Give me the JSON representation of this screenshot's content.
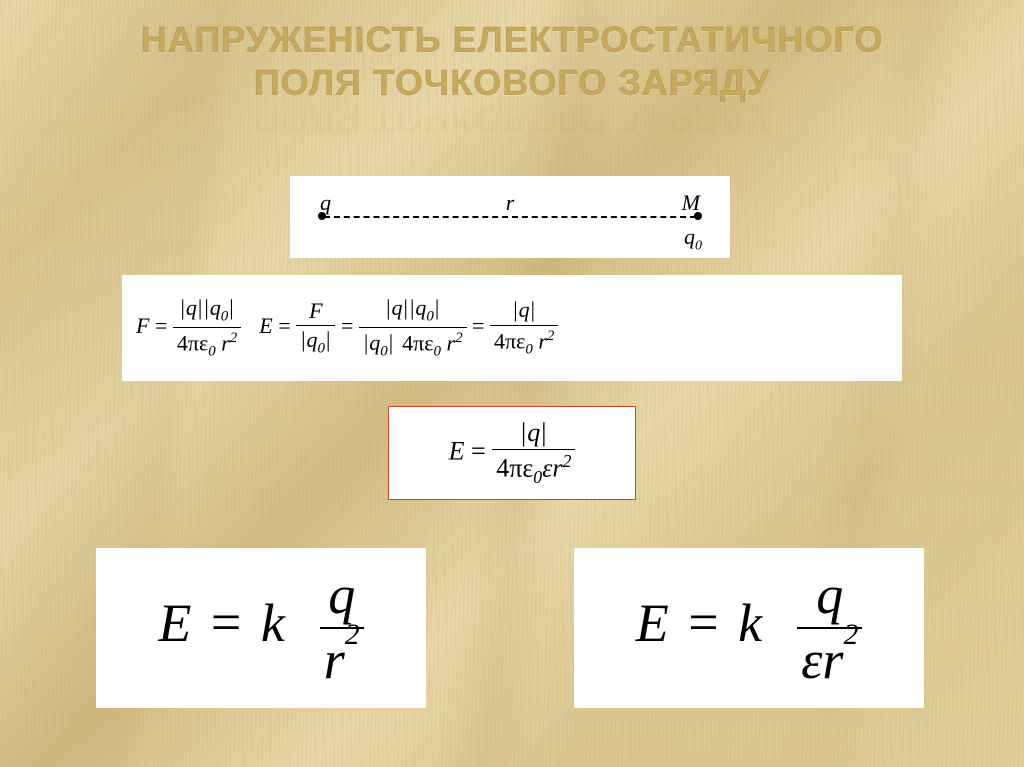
{
  "title": {
    "line1": "НАПРУЖЕНІСТЬ ЕЛЕКТРОСТАТИЧНОГО",
    "line2": "ПОЛЯ ТОЧКОВОГО ЗАРЯДУ",
    "font_size": 36,
    "color": "#c8a85a",
    "reflection_opacity": 0.25
  },
  "diagram": {
    "q": "q",
    "r": "r",
    "M": "M",
    "q0": "q",
    "q0_sub": "0",
    "line_style": "dashed",
    "background": "#ffffff"
  },
  "formulas": {
    "coulomb": {
      "lhs": "F",
      "num_a": "q",
      "num_b": "q",
      "num_b_sub": "0",
      "den": "4πε",
      "den_sub": "0",
      "den_tail": " r",
      "den_exp": "2"
    },
    "e_def": {
      "lhs": "E",
      "num": "F",
      "den": "q",
      "den_sub": "0"
    },
    "e_mid": {
      "num_a": "q",
      "num_b": "q",
      "num_b_sub": "0",
      "den_a": "q",
      "den_a_sub": "0",
      "den_b": "4πε",
      "den_b_sub": "0",
      "den_b_tail": " r",
      "den_b_exp": "2"
    },
    "e_result": {
      "num": "q",
      "den": "4πε",
      "den_sub": "0",
      "den_tail": " r",
      "den_exp": "2"
    },
    "boxed": {
      "lhs": "E",
      "num": "q",
      "den": "4πε",
      "den_sub": "0",
      "den_eps": "ε",
      "den_tail": "r",
      "den_exp": "2",
      "border_color": "#cc4422"
    },
    "vacuum": {
      "lhs": "E",
      "k": "k",
      "num": "q",
      "den": "r",
      "den_exp": "2"
    },
    "medium": {
      "lhs": "E",
      "k": "k",
      "num": "q",
      "den_eps": "ε",
      "den_r": "r",
      "den_exp": "2"
    }
  },
  "layout": {
    "slide_size": [
      1024,
      767
    ],
    "background_gradient": [
      "#e8d7a8",
      "#d9c58e",
      "#d2bc82"
    ],
    "formula_bg": "#ffffff",
    "font_formula": "Times New Roman",
    "font_title": "Arial",
    "fs_small": 22,
    "fs_med": 26,
    "fs_big": 54
  }
}
